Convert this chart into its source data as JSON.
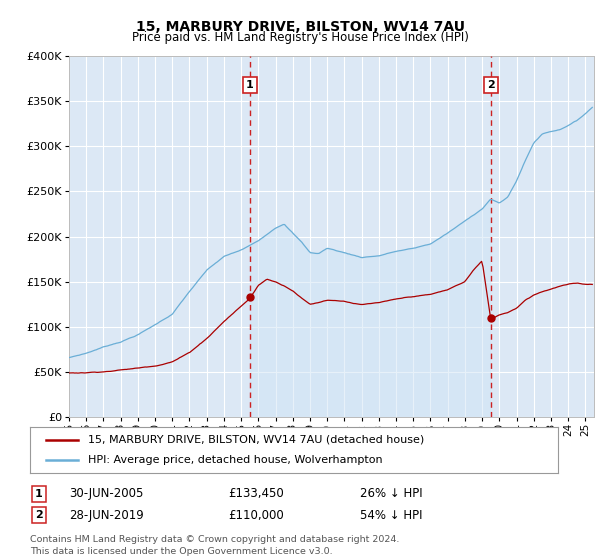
{
  "title": "15, MARBURY DRIVE, BILSTON, WV14 7AU",
  "subtitle": "Price paid vs. HM Land Registry's House Price Index (HPI)",
  "hpi_label": "HPI: Average price, detached house, Wolverhampton",
  "price_label": "15, MARBURY DRIVE, BILSTON, WV14 7AU (detached house)",
  "marker1": {
    "date_year": 2005.5,
    "price": 133450,
    "label": "1",
    "text": "30-JUN-2005",
    "amount": "£133,450",
    "pct": "26% ↓ HPI"
  },
  "marker2": {
    "date_year": 2019.5,
    "price": 110000,
    "label": "2",
    "text": "28-JUN-2019",
    "amount": "£110,000",
    "pct": "54% ↓ HPI"
  },
  "ylim": [
    0,
    400000
  ],
  "xlim_start": 1995,
  "xlim_end": 2025.5,
  "bg_color": "#dce8f5",
  "grid_color": "#ffffff",
  "hpi_color": "#6aaed6",
  "hpi_fill_color": "#d0e5f5",
  "price_color": "#aa0000",
  "marker_line_color": "#cc2222",
  "footer": "Contains HM Land Registry data © Crown copyright and database right 2024.\nThis data is licensed under the Open Government Licence v3.0.",
  "yticks": [
    0,
    50000,
    100000,
    150000,
    200000,
    250000,
    300000,
    350000,
    400000
  ],
  "ytick_labels": [
    "£0",
    "£50K",
    "£100K",
    "£150K",
    "£200K",
    "£250K",
    "£300K",
    "£350K",
    "£400K"
  ],
  "xtick_labels": [
    "95",
    "96",
    "97",
    "98",
    "99",
    "00",
    "01",
    "02",
    "03",
    "04",
    "05",
    "06",
    "07",
    "08",
    "09",
    "10",
    "11",
    "12",
    "13",
    "14",
    "15",
    "16",
    "17",
    "18",
    "19",
    "20",
    "21",
    "22",
    "23",
    "24",
    "25"
  ],
  "xticks": [
    1995,
    1996,
    1997,
    1998,
    1999,
    2000,
    2001,
    2002,
    2003,
    2004,
    2005,
    2006,
    2007,
    2008,
    2009,
    2010,
    2011,
    2012,
    2013,
    2014,
    2015,
    2016,
    2017,
    2018,
    2019,
    2020,
    2021,
    2022,
    2023,
    2024,
    2025
  ]
}
